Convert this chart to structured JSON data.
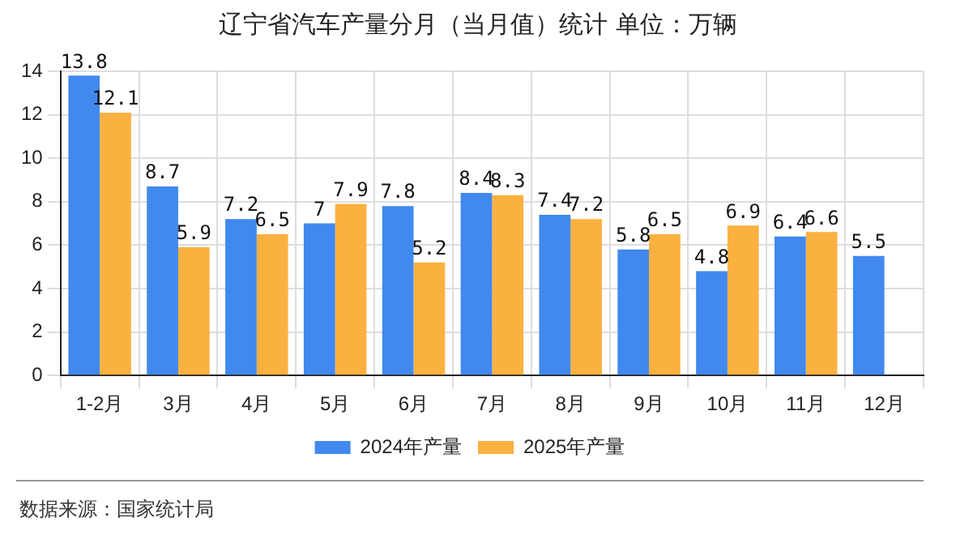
{
  "chart_data": {
    "type": "bar",
    "title": "辽宁省汽车产量分月（当月值）统计 单位：万辆",
    "categories": [
      "1-2月",
      "3月",
      "4月",
      "5月",
      "6月",
      "7月",
      "8月",
      "9月",
      "10月",
      "11月",
      "12月"
    ],
    "series": [
      {
        "name": "2024年产量",
        "color": "#4189ee",
        "values": [
          13.8,
          8.7,
          7.2,
          7,
          7.8,
          8.4,
          7.4,
          5.8,
          4.8,
          6.4,
          5.5
        ]
      },
      {
        "name": "2025年产量",
        "color": "#fbb13f",
        "values": [
          12.1,
          5.9,
          6.5,
          7.9,
          5.2,
          8.3,
          7.2,
          6.5,
          6.9,
          6.6,
          null
        ]
      }
    ],
    "ylim": [
      0,
      14
    ],
    "yticks": [
      0,
      2,
      4,
      6,
      8,
      10,
      12,
      14
    ],
    "grid": true,
    "legend": "bottom",
    "data_labels": true,
    "annotations": [
      "数据来源：国家统计局"
    ]
  }
}
